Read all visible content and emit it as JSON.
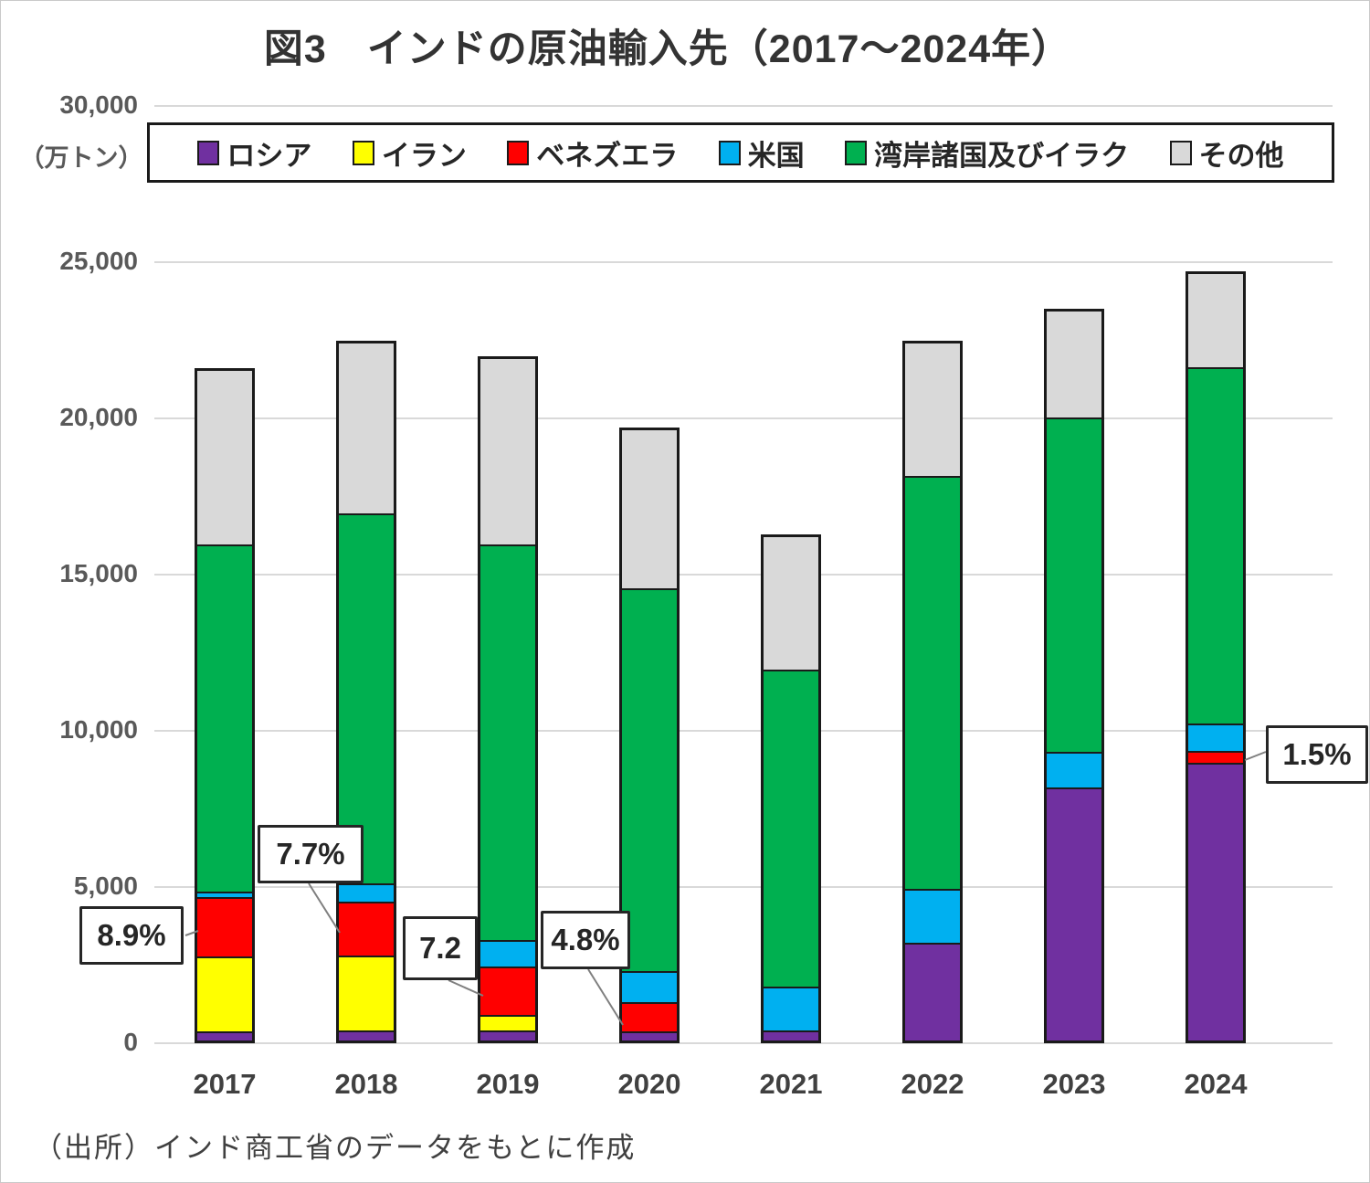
{
  "title": "図3　インドの原油輸入先（2017～2024年）",
  "unit_label": "（万トン）",
  "source": "（出所）インド商工省のデータをもとに作成",
  "colors": {
    "russia": "#7030A0",
    "iran": "#FFFF00",
    "venezuela": "#FF0000",
    "us": "#00B0F0",
    "gulf_iraq": "#00B050",
    "others": "#D9D9D9",
    "grid": "#D9D9D9",
    "bar_border": "#1a1a1a"
  },
  "chart_data": {
    "type": "bar",
    "stacked": true,
    "title": "図3　インドの原油輸入先（2017～2024年）",
    "ylabel": "（万トン）",
    "ylim": [
      0,
      30000
    ],
    "ytick_labels": [
      "0",
      "5,000",
      "10,000",
      "15,000",
      "20,000",
      "25,000",
      "30,000"
    ],
    "ytick_values": [
      0,
      5000,
      10000,
      15000,
      20000,
      25000,
      30000
    ],
    "grid": true,
    "legend_position": "top",
    "categories": [
      "2017",
      "2018",
      "2019",
      "2020",
      "2021",
      "2022",
      "2023",
      "2024"
    ],
    "series": [
      {
        "name": "ロシア",
        "key": "russia",
        "values": [
          300,
          330,
          320,
          280,
          330,
          3150,
          8150,
          8950
        ]
      },
      {
        "name": "イラン",
        "key": "iran",
        "values": [
          2400,
          2420,
          500,
          0,
          0,
          0,
          0,
          0
        ]
      },
      {
        "name": "ベネズエラ",
        "key": "venezuela",
        "values": [
          1920,
          1730,
          1580,
          950,
          0,
          0,
          0,
          370
        ]
      },
      {
        "name": "米国",
        "key": "us",
        "values": [
          180,
          590,
          850,
          1000,
          1420,
          1750,
          1150,
          900
        ]
      },
      {
        "name": "湾岸諸国及びイラク",
        "key": "gulf_iraq",
        "values": [
          11200,
          11930,
          12750,
          12370,
          10250,
          13300,
          10800,
          11480
        ]
      },
      {
        "name": "その他",
        "key": "others",
        "values": [
          5600,
          5500,
          6000,
          5100,
          4300,
          4300,
          3400,
          3000
        ]
      }
    ],
    "totals": [
      21600,
      22500,
      22000,
      19700,
      16300,
      22500,
      23500,
      24700
    ],
    "annotations": [
      {
        "label": "8.9%",
        "category": "2017",
        "series": "ベネズエラ"
      },
      {
        "label": "7.7%",
        "category": "2018",
        "series": "ベネズエラ"
      },
      {
        "label": "7.2",
        "category": "2019",
        "series": "ベネズエラ"
      },
      {
        "label": "4.8%",
        "category": "2020",
        "series": "ベネズエラ"
      },
      {
        "label": "1.5%",
        "category": "2024",
        "series": "ベネズエラ"
      }
    ]
  }
}
